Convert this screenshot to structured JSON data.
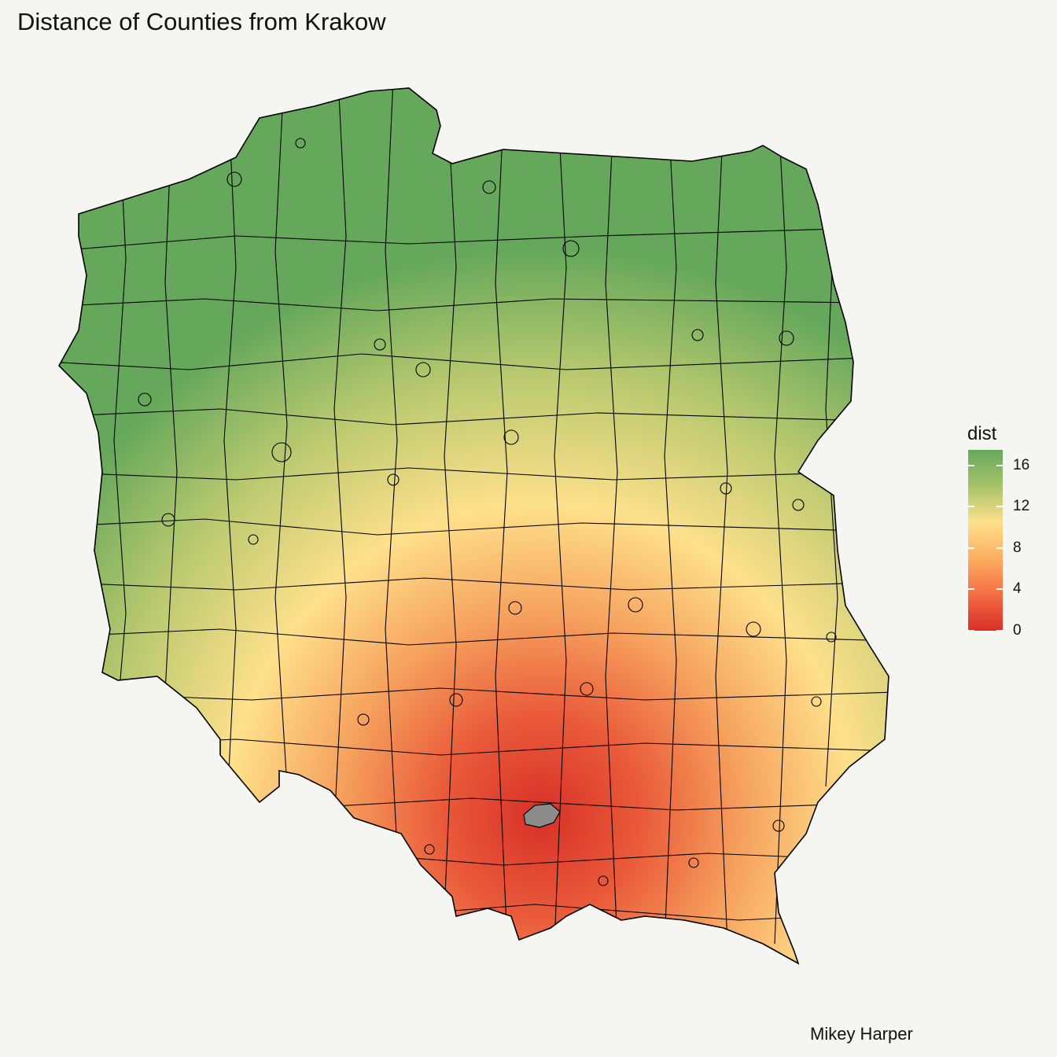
{
  "title": "Distance of Counties from Krakow",
  "caption": "Mikey Harper",
  "legend": {
    "title": "dist",
    "range": [
      0,
      17.5
    ],
    "ticks": [
      0,
      4,
      8,
      12,
      16
    ],
    "colors": [
      "#d73027",
      "#f46d43",
      "#fdae61",
      "#fee08b",
      "#a6c46a",
      "#66a85b"
    ]
  },
  "highlight": {
    "name": "Krakow",
    "color": "#8c8c8c"
  },
  "map": {
    "outline_color": "#000000"
  }
}
